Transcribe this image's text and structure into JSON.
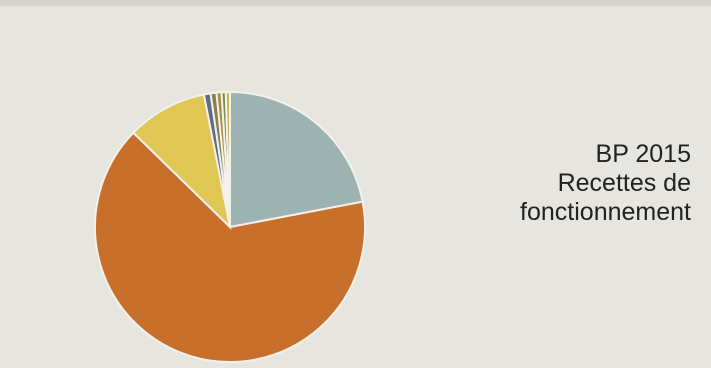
{
  "slide": {
    "title_line1": "BP 2015",
    "title_line2": "Recettes de",
    "title_line3": "fonctionnement"
  },
  "chart_data": {
    "type": "pie",
    "title": "",
    "start_angle_deg": 0,
    "direction": "clockwise",
    "slices": [
      {
        "label": "",
        "value": 22.0,
        "color": "#9db3b2"
      },
      {
        "label": "",
        "value": 65.3,
        "color": "#c96f2c"
      },
      {
        "label": "",
        "value": 9.6,
        "color": "#e0c653"
      },
      {
        "label": "",
        "value": 0.8,
        "color": "#5e6d86"
      },
      {
        "label": "",
        "value": 0.7,
        "color": "#8a7d52"
      },
      {
        "label": "",
        "value": 0.6,
        "color": "#a49043"
      },
      {
        "label": "",
        "value": 0.5,
        "color": "#7e8c4e"
      },
      {
        "label": "",
        "value": 0.5,
        "color": "#c9b25a"
      }
    ]
  }
}
